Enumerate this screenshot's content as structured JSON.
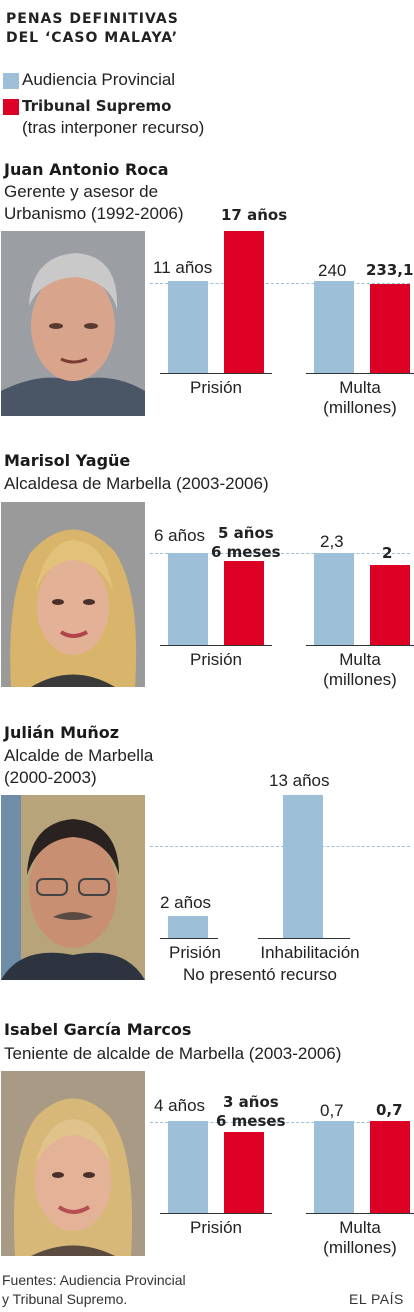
{
  "title_line1": "PENAS DEFINITIVAS",
  "title_line2": "DEL ‘CASO MALAYA’",
  "legend": {
    "blue_label": "Audiencia Provincial",
    "red_label": "Tribunal Supremo",
    "red_sub": "(tras interponer recurso)",
    "blue_color": "#9dbfd8",
    "red_color": "#dc0025"
  },
  "people": [
    {
      "name": "Juan Antonio Roca",
      "role_line1": "Gerente y asesor de",
      "role_line2": "Urbanismo (1992-2006)",
      "photo_icon": "man-portrait-photo"
    },
    {
      "name": "Marisol Yagüe",
      "role_line1": "Alcaldesa de Marbella (2003-2006)",
      "photo_icon": "woman-portrait-photo"
    },
    {
      "name": "Julián Muñoz",
      "role_line1": "Alcalde de Marbella",
      "role_line2": "(2000-2003)",
      "photo_icon": "man-portrait-photo",
      "note": "No presentó recurso"
    },
    {
      "name": "Isabel García Marcos",
      "role_line1": "Teniente de alcalde de Marbella (2003-2006)",
      "photo_icon": "woman-portrait-photo"
    }
  ],
  "chart_data": [
    {
      "type": "bar",
      "person": "Juan Antonio Roca",
      "groups": [
        {
          "category": "Prisión",
          "blue": 11,
          "red": 17,
          "blue_label": "11 años",
          "red_label": "17 años"
        },
        {
          "category_line1": "Multa",
          "category_line2": "(millones)",
          "blue": 240,
          "red": 233.1,
          "blue_label": "240",
          "red_label": "233,1"
        }
      ]
    },
    {
      "type": "bar",
      "person": "Marisol Yagüe",
      "groups": [
        {
          "category": "Prisión",
          "blue": 6,
          "red": 5.5,
          "blue_label": "6 años",
          "red_label_line1": "5 años",
          "red_label_line2": "6 meses"
        },
        {
          "category_line1": "Multa",
          "category_line2": "(millones)",
          "blue": 2.3,
          "red": 2,
          "blue_label": "2,3",
          "red_label": "2"
        }
      ]
    },
    {
      "type": "bar",
      "person": "Julián Muñoz",
      "groups": [
        {
          "category": "Prisión",
          "blue": 2,
          "blue_label": "2 años"
        },
        {
          "category": "Inhabilitación",
          "blue": 13,
          "blue_label": "13 años"
        }
      ]
    },
    {
      "type": "bar",
      "person": "Isabel García Marcos",
      "groups": [
        {
          "category": "Prisión",
          "blue": 4,
          "red": 3.5,
          "blue_label": "4 años",
          "red_label_line1": "3 años",
          "red_label_line2": "6 meses"
        },
        {
          "category_line1": "Multa",
          "category_line2": "(millones)",
          "blue": 0.7,
          "red": 0.7,
          "blue_label": "0,7",
          "red_label": "0,7"
        }
      ]
    }
  ],
  "footer": {
    "line1": "Fuentes: Audiencia Provincial",
    "line2": "y Tribunal Supremo.",
    "brand": "EL PAÍS"
  }
}
